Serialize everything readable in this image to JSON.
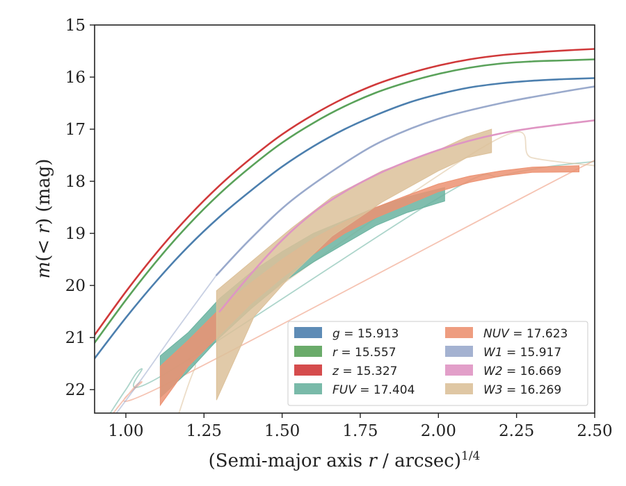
{
  "chart_data": {
    "type": "line",
    "xlabel": "(Semi-major axis r / arcsec)^{1/4}",
    "ylabel": "m(< r) (mag)",
    "xlim": [
      0.9,
      2.5
    ],
    "ylim": [
      22.45,
      15.0
    ],
    "y_inverted": true,
    "xticks": [
      "1.00",
      "1.25",
      "1.50",
      "1.75",
      "2.00",
      "2.25",
      "2.50"
    ],
    "yticks": [
      "15",
      "16",
      "17",
      "18",
      "19",
      "20",
      "21",
      "22"
    ],
    "legend_position": "lower-right",
    "series": [
      {
        "name": "g = 15.913",
        "label_parts": [
          "g",
          " = 15.913"
        ],
        "kind": "line",
        "color": "#4c7fae",
        "x": [
          0.9,
          1.0,
          1.1,
          1.2,
          1.3,
          1.4,
          1.5,
          1.6,
          1.7,
          1.8,
          1.9,
          2.0,
          2.1,
          2.2,
          2.3,
          2.4,
          2.5
        ],
        "y": [
          21.4,
          20.62,
          19.9,
          19.25,
          18.68,
          18.18,
          17.72,
          17.33,
          17.0,
          16.73,
          16.5,
          16.33,
          16.2,
          16.12,
          16.07,
          16.04,
          16.02
        ]
      },
      {
        "name": "r = 15.557",
        "label_parts": [
          "r",
          " = 15.557"
        ],
        "kind": "line",
        "color": "#5aa25a",
        "x": [
          0.9,
          1.0,
          1.1,
          1.2,
          1.3,
          1.4,
          1.5,
          1.6,
          1.7,
          1.8,
          1.9,
          2.0,
          2.1,
          2.2,
          2.3,
          2.4,
          2.5
        ],
        "y": [
          21.1,
          20.28,
          19.52,
          18.84,
          18.24,
          17.72,
          17.26,
          16.88,
          16.56,
          16.3,
          16.1,
          15.94,
          15.82,
          15.74,
          15.7,
          15.68,
          15.66
        ]
      },
      {
        "name": "z = 15.327",
        "label_parts": [
          "z",
          " = 15.327"
        ],
        "kind": "line",
        "color": "#d0393a",
        "x": [
          0.9,
          1.0,
          1.1,
          1.2,
          1.3,
          1.4,
          1.5,
          1.6,
          1.7,
          1.8,
          1.9,
          2.0,
          2.1,
          2.2,
          2.3,
          2.4,
          2.5
        ],
        "y": [
          20.95,
          20.12,
          19.36,
          18.68,
          18.08,
          17.56,
          17.1,
          16.72,
          16.4,
          16.14,
          15.94,
          15.78,
          15.66,
          15.58,
          15.53,
          15.49,
          15.46
        ]
      },
      {
        "name": "FUV = 17.404",
        "label_parts": [
          "FUV",
          " = 17.404"
        ],
        "kind": "band",
        "color": "#6ab3a0",
        "x": [
          1.11,
          1.2,
          1.3,
          1.4,
          1.5,
          1.6,
          1.7,
          1.8,
          1.9,
          2.02
        ],
        "y_low": [
          21.35,
          20.9,
          20.25,
          19.75,
          19.35,
          19.0,
          18.75,
          18.5,
          18.3,
          18.12
        ],
        "y_high": [
          22.15,
          21.65,
          21.0,
          20.45,
          19.95,
          19.55,
          19.2,
          18.85,
          18.6,
          18.38
        ],
        "extension": {
          "x": [
            0.95,
            1.0,
            1.05,
            1.11,
            2.02,
            2.2,
            2.35,
            2.5
          ],
          "y": [
            22.45,
            22.0,
            21.6,
            21.75,
            18.25,
            17.9,
            17.72,
            17.62
          ]
        }
      },
      {
        "name": "NUV = 17.623",
        "label_parts": [
          "NUV",
          " = 17.623"
        ],
        "kind": "band",
        "color": "#ec9272",
        "x": [
          1.11,
          1.2,
          1.3,
          1.4,
          1.5,
          1.6,
          1.7,
          1.8,
          1.9,
          2.0,
          2.1,
          2.2,
          2.3,
          2.45
        ],
        "y_low": [
          21.55,
          21.05,
          20.45,
          19.95,
          19.5,
          19.1,
          18.78,
          18.5,
          18.27,
          18.05,
          17.9,
          17.8,
          17.73,
          17.7
        ],
        "y_high": [
          22.3,
          21.55,
          20.95,
          20.35,
          19.85,
          19.4,
          19.0,
          18.7,
          18.45,
          18.2,
          18.02,
          17.9,
          17.83,
          17.82
        ],
        "extension": {
          "x": [
            0.96,
            1.0,
            1.05,
            1.11,
            2.45,
            2.5
          ],
          "y": [
            22.45,
            22.15,
            21.85,
            21.95,
            17.75,
            17.72
          ]
        }
      },
      {
        "name": "W1 = 15.917",
        "label_parts": [
          "W1",
          " = 15.917"
        ],
        "kind": "line",
        "color": "#9aaacc",
        "x": [
          1.29,
          1.4,
          1.53,
          1.7,
          1.83,
          2.0,
          2.2,
          2.4,
          2.5
        ],
        "y": [
          19.8,
          19.1,
          18.37,
          17.65,
          17.2,
          16.8,
          16.5,
          16.28,
          16.18
        ],
        "extension": {
          "x": [
            0.97,
            1.05,
            1.15,
            1.29
          ],
          "y": [
            22.45,
            21.8,
            20.95,
            19.8
          ]
        }
      },
      {
        "name": "W2 = 16.669",
        "label_parts": [
          "W2",
          " = 16.669"
        ],
        "kind": "line",
        "color": "#df95c3",
        "x": [
          1.3,
          1.4,
          1.5,
          1.6,
          1.7,
          1.8,
          1.9,
          2.0,
          2.1,
          2.2,
          2.3,
          2.5
        ],
        "y": [
          20.5,
          19.78,
          19.13,
          18.6,
          18.2,
          17.88,
          17.62,
          17.4,
          17.22,
          17.08,
          16.98,
          16.83
        ]
      },
      {
        "name": "W3 = 16.269",
        "label_parts": [
          "W3",
          " = 16.269"
        ],
        "kind": "band",
        "color": "#dcc19a",
        "x": [
          1.29,
          1.41,
          1.53,
          1.66,
          1.82,
          2.0,
          2.09,
          2.17
        ],
        "y_low": [
          20.1,
          19.5,
          18.9,
          18.3,
          17.8,
          17.4,
          17.15,
          17.0
        ],
        "y_high": [
          22.2,
          20.6,
          19.8,
          19.05,
          18.4,
          17.8,
          17.55,
          17.45
        ],
        "extension": {
          "x": [
            1.17,
            1.22,
            1.29,
            2.17,
            2.3,
            2.5
          ],
          "y": [
            22.45,
            21.6,
            20.9,
            17.25,
            17.55,
            17.7
          ]
        }
      }
    ],
    "legend_columns": [
      [
        "g = 15.913",
        "r = 15.557",
        "z = 15.327",
        "FUV = 17.404"
      ],
      [
        "NUV = 17.623",
        "W1 = 15.917",
        "W2 = 16.669",
        "W3 = 16.269"
      ]
    ]
  }
}
